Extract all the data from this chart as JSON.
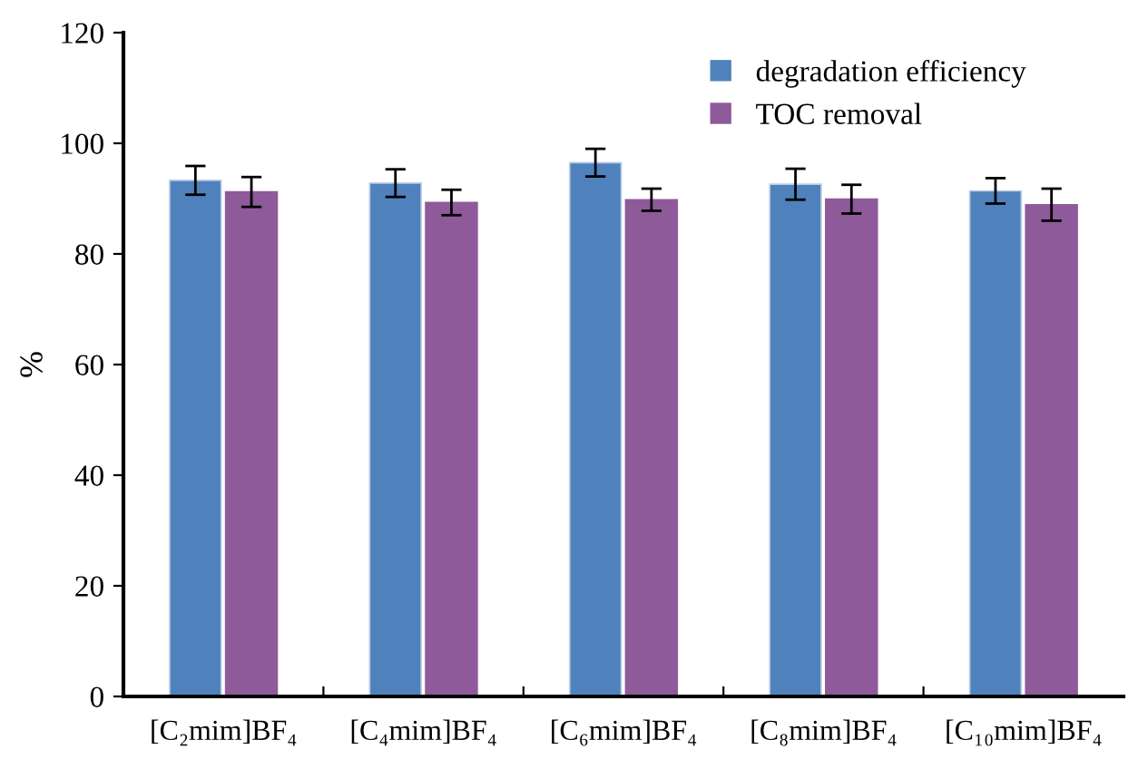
{
  "chart_data": {
    "type": "bar",
    "ylabel": "%",
    "categories": [
      "[C₂mim]BF₄",
      "[C₄mim]BF₄",
      "[C₆mim]BF₄",
      "[C₈mim]BF₄",
      "[C₁₀mim]BF₄"
    ],
    "series": [
      {
        "name": "degradation efficiency",
        "color": "#4f81bd",
        "values": [
          93.3,
          92.8,
          96.5,
          92.6,
          91.4
        ],
        "errors": [
          2.6,
          2.5,
          2.5,
          2.8,
          2.3
        ]
      },
      {
        "name": "TOC removal",
        "color": "#8e5a9a",
        "values": [
          91.2,
          89.3,
          89.8,
          89.9,
          88.9
        ],
        "errors": [
          2.7,
          2.3,
          2.0,
          2.6,
          2.9
        ]
      }
    ],
    "ylim": [
      0,
      120
    ],
    "yticks": [
      0,
      20,
      40,
      60,
      80,
      100,
      120
    ],
    "grid": false,
    "legend": "top right"
  }
}
